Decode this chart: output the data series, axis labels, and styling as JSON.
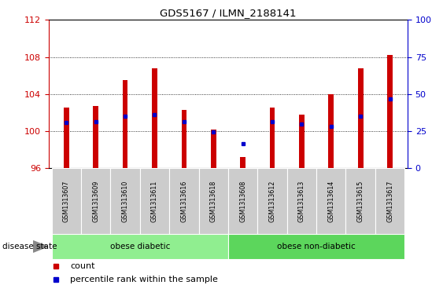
{
  "title": "GDS5167 / ILMN_2188141",
  "samples": [
    "GSM1313607",
    "GSM1313609",
    "GSM1313610",
    "GSM1313611",
    "GSM1313616",
    "GSM1313618",
    "GSM1313608",
    "GSM1313612",
    "GSM1313613",
    "GSM1313614",
    "GSM1313615",
    "GSM1313617"
  ],
  "counts": [
    102.5,
    102.7,
    105.5,
    106.8,
    102.3,
    100.2,
    97.2,
    102.5,
    101.8,
    104.0,
    106.8,
    108.2
  ],
  "percentile_ranks_left": [
    100.9,
    101.0,
    101.6,
    101.8,
    101.0,
    99.9,
    98.6,
    101.0,
    100.8,
    100.5,
    101.6,
    103.5
  ],
  "base_value": 96,
  "ylim_left": [
    96,
    112
  ],
  "ylim_right": [
    0,
    100
  ],
  "yticks_left": [
    96,
    100,
    104,
    108,
    112
  ],
  "yticks_right": [
    0,
    25,
    50,
    75,
    100
  ],
  "left_tick_color": "#cc0000",
  "right_tick_color": "#0000cc",
  "bar_color": "#cc0000",
  "marker_color": "#0000cc",
  "groups": [
    {
      "label": "obese diabetic",
      "start": 0,
      "end": 6
    },
    {
      "label": "obese non-diabetic",
      "start": 6,
      "end": 12
    }
  ],
  "disease_state_label": "disease state",
  "legend_count_label": "count",
  "legend_percentile_label": "percentile rank within the sample",
  "bar_width": 0.18,
  "bg_xtick": "#cccccc",
  "bg_group_light": "#90ee90",
  "bg_group_dark": "#5cd65c"
}
